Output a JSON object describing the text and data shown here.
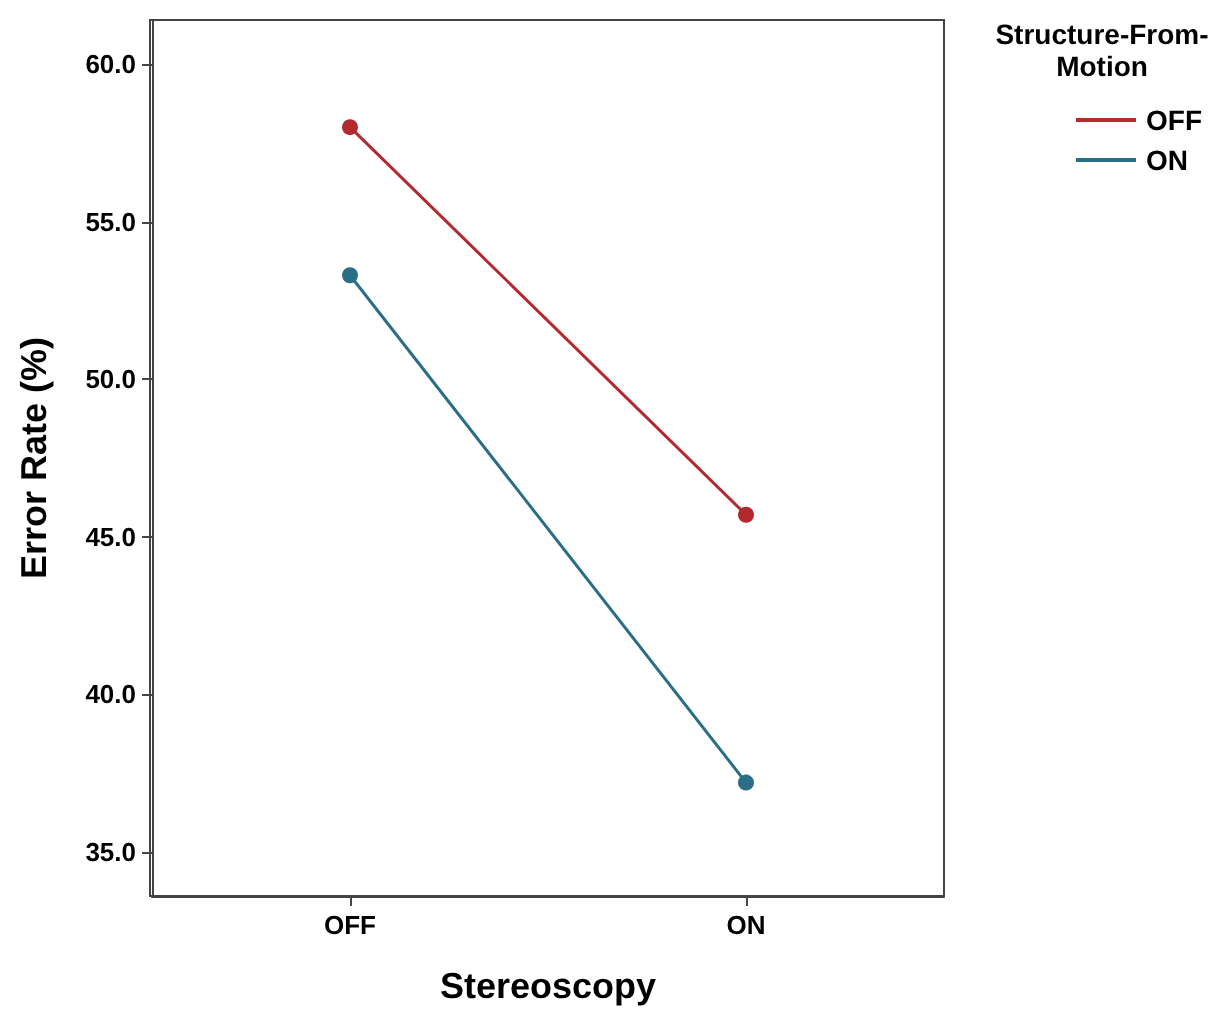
{
  "chart_data": {
    "type": "line",
    "xlabel": "Stereoscopy",
    "ylabel": "Error Rate (%)",
    "legend_title": "Structure-From-Motion",
    "categories": [
      "OFF",
      "ON"
    ],
    "series": [
      {
        "name": "OFF",
        "color": "#b22a2e",
        "values": [
          58.0,
          45.7
        ]
      },
      {
        "name": "ON",
        "color": "#2a6e86",
        "values": [
          53.3,
          37.2
        ]
      }
    ],
    "ylim": [
      33.6,
      61.4
    ],
    "yticks": [
      {
        "value": 35,
        "label": "35.0"
      },
      {
        "value": 40,
        "label": "40.0"
      },
      {
        "value": 45,
        "label": "45.0"
      },
      {
        "value": 50,
        "label": "50.0"
      },
      {
        "value": 55,
        "label": "55.0"
      },
      {
        "value": 60,
        "label": "60.0"
      }
    ],
    "grid": false,
    "legend": "top right",
    "marker": "circle",
    "line_style": "solid"
  }
}
